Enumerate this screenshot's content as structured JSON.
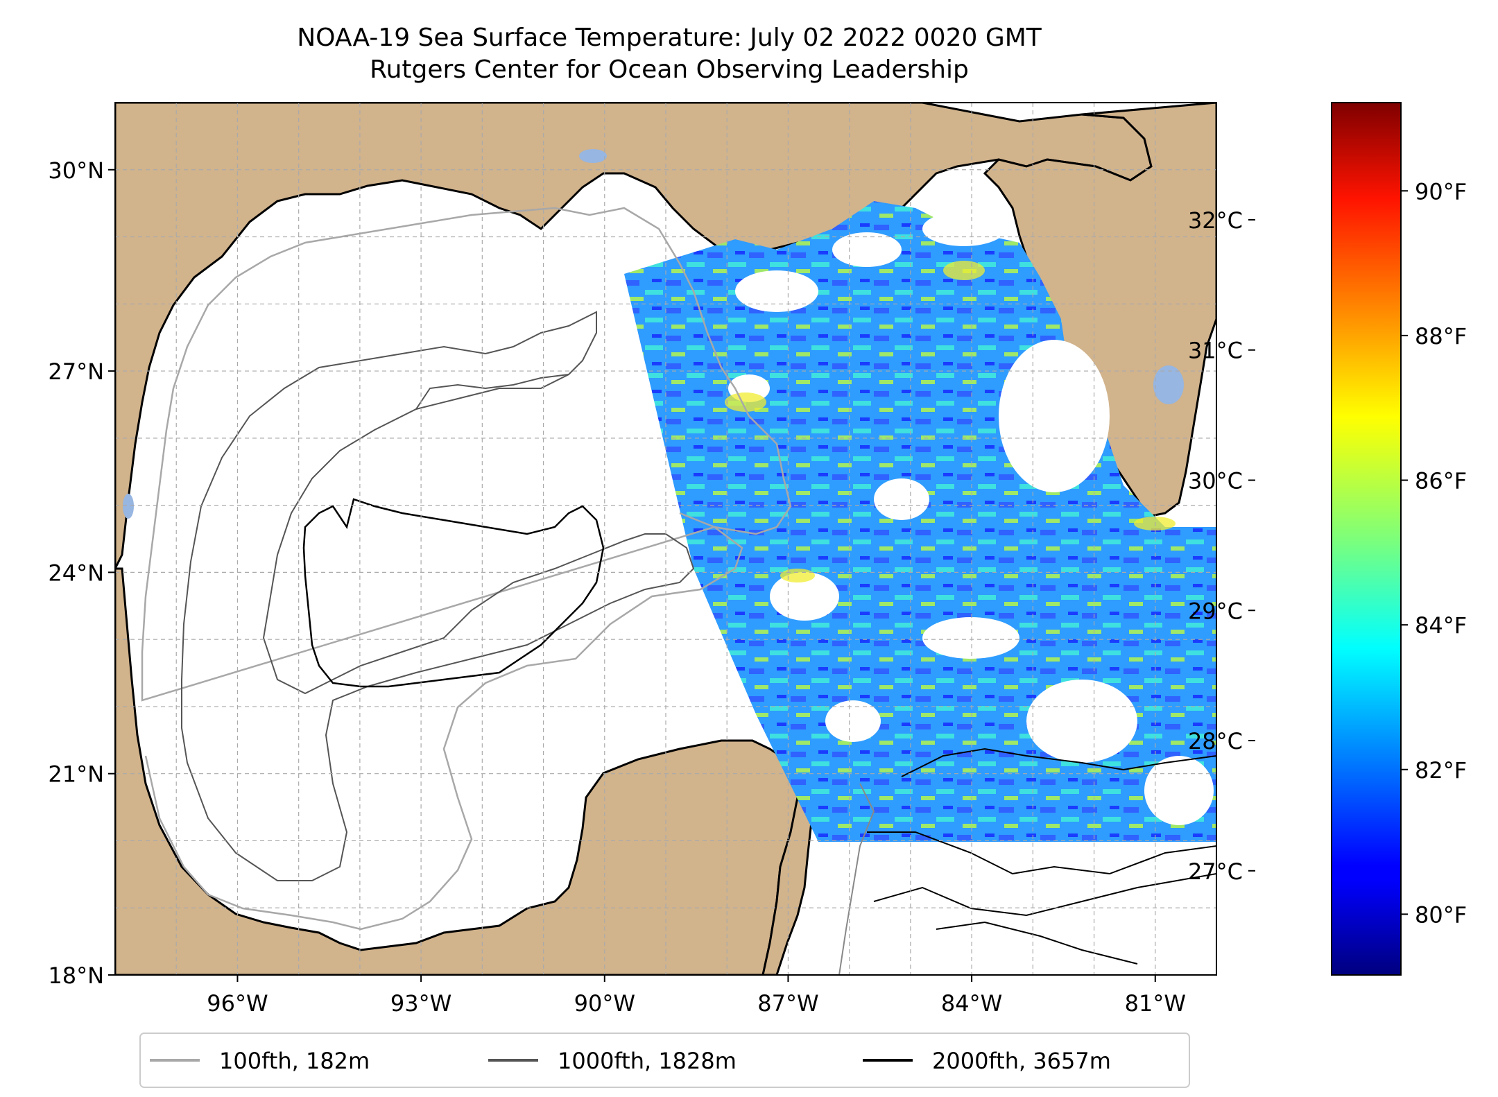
{
  "title": {
    "line1": "NOAA-19 Sea Surface Temperature: July 02 2022 0020 GMT",
    "line2": "Rutgers Center for Ocean Observing Leadership"
  },
  "map": {
    "lon_range": [
      -98.0,
      -80.0
    ],
    "lat_range": [
      18.0,
      31.0
    ],
    "gridlines": "dashed",
    "land_color": "#d1b38c",
    "lake_color": "#97b6e1",
    "lat_ticks": [
      {
        "value": 18,
        "label": "18°N"
      },
      {
        "value": 21,
        "label": "21°N"
      },
      {
        "value": 24,
        "label": "24°N"
      },
      {
        "value": 27,
        "label": "27°N"
      },
      {
        "value": 30,
        "label": "30°N"
      }
    ],
    "lon_ticks": [
      {
        "value": -96,
        "label": "96°W"
      },
      {
        "value": -93,
        "label": "93°W"
      },
      {
        "value": -90,
        "label": "90°W"
      },
      {
        "value": -87,
        "label": "87°W"
      },
      {
        "value": -84,
        "label": "84°W"
      },
      {
        "value": -81,
        "label": "81°W"
      }
    ]
  },
  "colorbar": {
    "colormap": "jet",
    "celsius_ticks": [
      {
        "value": 27,
        "label": "27°C"
      },
      {
        "value": 28,
        "label": "28°C"
      },
      {
        "value": 29,
        "label": "29°C"
      },
      {
        "value": 30,
        "label": "30°C"
      },
      {
        "value": 31,
        "label": "31°C"
      },
      {
        "value": 32,
        "label": "32°C"
      }
    ],
    "fahrenheit_ticks": [
      {
        "value": 80,
        "label": "80°F"
      },
      {
        "value": 82,
        "label": "82°F"
      },
      {
        "value": 84,
        "label": "84°F"
      },
      {
        "value": 86,
        "label": "86°F"
      },
      {
        "value": 88,
        "label": "88°F"
      },
      {
        "value": 90,
        "label": "90°F"
      }
    ]
  },
  "legend": {
    "placement": "bottom",
    "items": [
      {
        "label": "100fth, 182m",
        "color": "#a8a8a8"
      },
      {
        "label": "1000fth, 1828m",
        "color": "#555555"
      },
      {
        "label": "2000fth, 3657m",
        "color": "#000000"
      }
    ]
  }
}
